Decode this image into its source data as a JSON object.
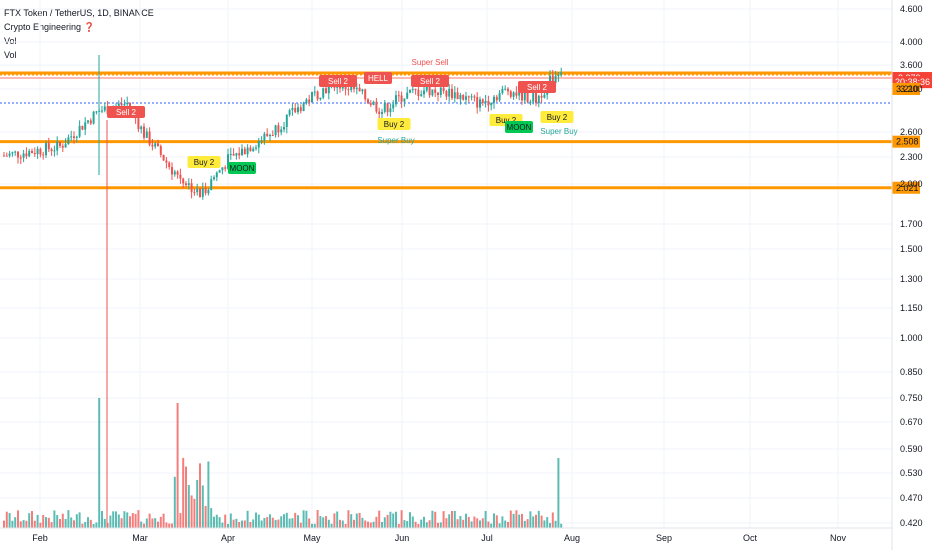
{
  "legend": {
    "symbol": "FTX Token / TetherUS, 1D, BINANCE",
    "indicator": "Crypto Engineering ❓",
    "vol1": "Vol",
    "vol2": "Vol"
  },
  "colors": {
    "up": "#26a69a",
    "down": "#ef5350",
    "resistance": "#ff9800",
    "last_line": "#f44336",
    "support_dotted": "#2962ff",
    "label_red": "#ef5350",
    "label_yellow": "#ffeb3b",
    "label_green": "#00c853"
  },
  "chart_data": {
    "type": "candlestick",
    "y_axis": {
      "scale": "log",
      "ticks": [
        "4.600",
        "4.000",
        "3.600",
        "3.200",
        "2.600",
        "2.300",
        "2.000",
        "1.700",
        "1.500",
        "1.300",
        "1.150",
        "1.000",
        "0.850",
        "0.750",
        "0.670",
        "0.590",
        "0.530",
        "0.470",
        "0.420"
      ]
    },
    "x_axis": {
      "ticks": [
        "Feb",
        "Mar",
        "Apr",
        "May",
        "Jun",
        "Jul",
        "Aug",
        "Sep",
        "Oct",
        "Nov"
      ]
    },
    "horizontal_levels": [
      {
        "price": 3.379,
        "label": "3.379",
        "style": "last"
      },
      {
        "price": 3.33,
        "label": "20:38:36",
        "style": "countdown"
      },
      {
        "price": 3.21,
        "label": "3.210",
        "style": "resistance"
      },
      {
        "price": 2.508,
        "label": "2.508",
        "style": "support"
      },
      {
        "price": 2.021,
        "label": "2.021",
        "style": "support"
      }
    ],
    "annotations": [
      {
        "text": "Sell 2",
        "kind": "sell"
      },
      {
        "text": "Sell 2",
        "kind": "sell"
      },
      {
        "text": "HELL",
        "kind": "sell"
      },
      {
        "text": "Sell 2",
        "kind": "sell"
      },
      {
        "text": "Sell 2",
        "kind": "sell"
      },
      {
        "text": "Super Sell",
        "kind": "text-red"
      },
      {
        "text": "Buy 2",
        "kind": "buy"
      },
      {
        "text": "MOON",
        "kind": "moon"
      },
      {
        "text": "Buy 2",
        "kind": "buy"
      },
      {
        "text": "Super Buy",
        "kind": "text-green"
      },
      {
        "text": "Buy 2",
        "kind": "buy"
      },
      {
        "text": "MOON",
        "kind": "moon"
      },
      {
        "text": "Buy 2",
        "kind": "buy"
      },
      {
        "text": "Super Buy",
        "kind": "text-green"
      }
    ]
  }
}
